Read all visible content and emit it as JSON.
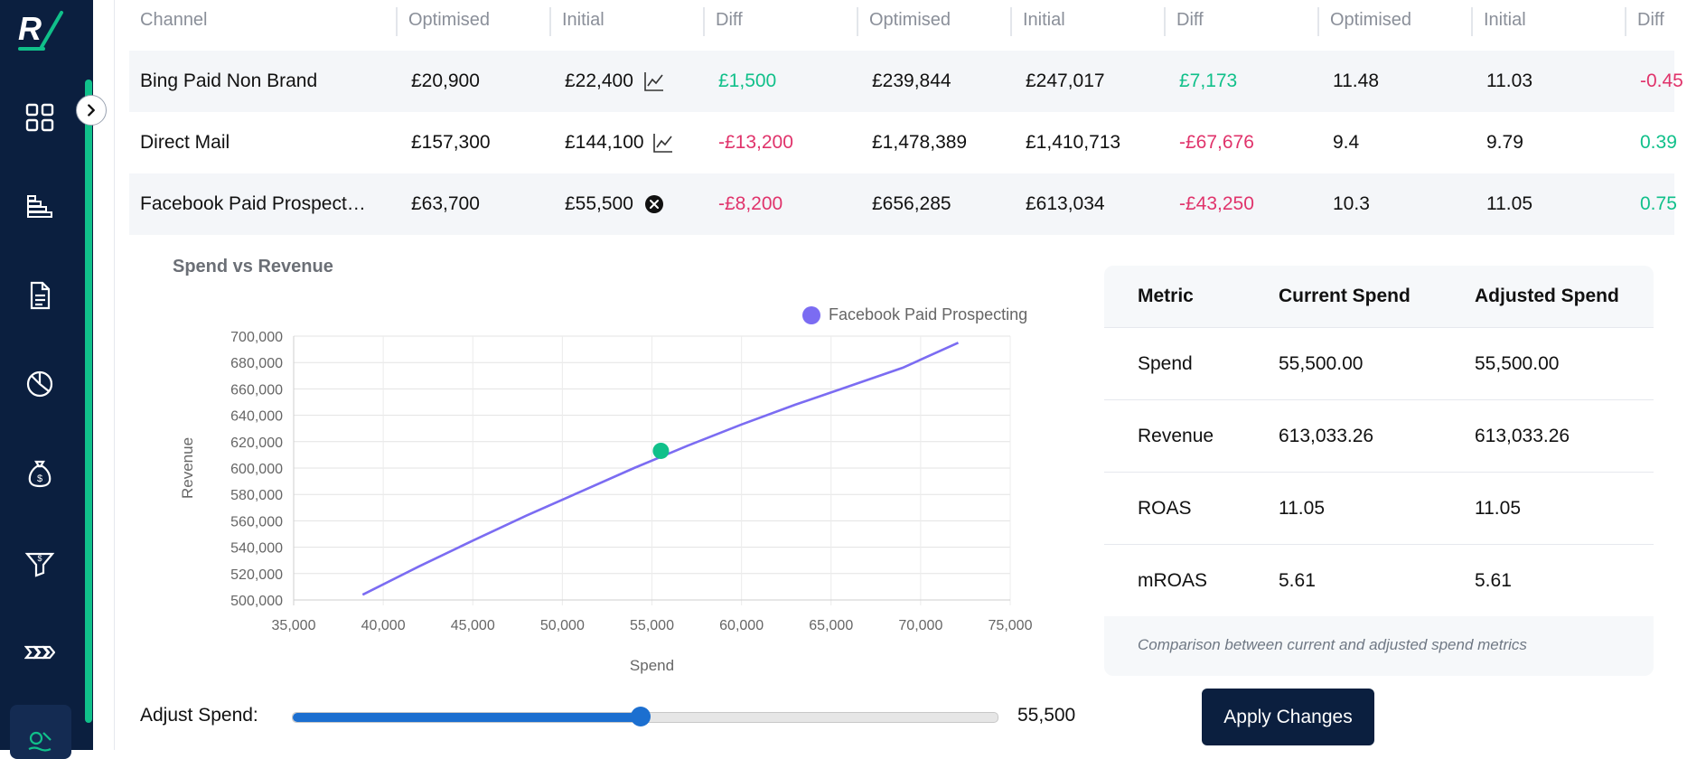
{
  "colors": {
    "sidebar_bg": "#0b1f3f",
    "accent_green": "#10c08a",
    "negative_pink": "#e0336b",
    "series_purple": "#7b6cf2",
    "primary_blue": "#1c6fd0"
  },
  "sidebar": {
    "logo_text": "R/",
    "items": [
      {
        "icon": "dashboard-grid-icon"
      },
      {
        "icon": "stacked-layers-icon"
      },
      {
        "icon": "document-icon"
      },
      {
        "icon": "pie-chart-icon"
      },
      {
        "icon": "money-bag-icon"
      },
      {
        "icon": "funnel-icon"
      },
      {
        "icon": "double-chevron-icon"
      },
      {
        "icon": "optimise-icon"
      }
    ]
  },
  "table": {
    "headers": [
      "Channel",
      "Optimised",
      "Initial",
      "Diff",
      "Optimised",
      "Initial",
      "Diff",
      "Optimised",
      "Initial",
      "Diff"
    ],
    "rows": [
      {
        "channel": "Bing Paid Non Brand",
        "spend_opt": "£20,900",
        "spend_init": "£22,400",
        "init_icon": "line-chart-icon",
        "spend_diff": "£1,500",
        "spend_diff_sign": "pos",
        "rev_opt": "£239,844",
        "rev_init": "£247,017",
        "rev_diff": "£7,173",
        "rev_diff_sign": "pos",
        "roas_opt": "11.48",
        "roas_init": "11.03",
        "roas_diff": "-0.45",
        "roas_diff_sign": "neg"
      },
      {
        "channel": "Direct Mail",
        "spend_opt": "£157,300",
        "spend_init": "£144,100",
        "init_icon": "line-chart-icon",
        "spend_diff": "-£13,200",
        "spend_diff_sign": "neg",
        "rev_opt": "£1,478,389",
        "rev_init": "£1,410,713",
        "rev_diff": "-£67,676",
        "rev_diff_sign": "neg",
        "roas_opt": "9.4",
        "roas_init": "9.79",
        "roas_diff": "0.39",
        "roas_diff_sign": "pos"
      },
      {
        "channel": "Facebook Paid Prospect…",
        "spend_opt": "£63,700",
        "spend_init": "£55,500",
        "init_icon": "close-circle-icon",
        "spend_diff": "-£8,200",
        "spend_diff_sign": "neg",
        "rev_opt": "£656,285",
        "rev_init": "£613,034",
        "rev_diff": "-£43,250",
        "rev_diff_sign": "neg",
        "roas_opt": "10.3",
        "roas_init": "11.05",
        "roas_diff": "0.75",
        "roas_diff_sign": "pos"
      }
    ]
  },
  "chart_data": {
    "type": "line",
    "title": "Spend vs Revenue",
    "xlabel": "Spend",
    "ylabel": "Revenue",
    "xlim": [
      35000,
      75000
    ],
    "ylim": [
      500000,
      700000
    ],
    "xticks": [
      "35,000",
      "40,000",
      "45,000",
      "50,000",
      "55,000",
      "60,000",
      "65,000",
      "70,000",
      "75,000"
    ],
    "yticks": [
      "700,000",
      "680,000",
      "660,000",
      "640,000",
      "620,000",
      "600,000",
      "580,000",
      "560,000",
      "540,000",
      "520,000",
      "500,000"
    ],
    "grid": true,
    "legend_position": "top-right",
    "series": [
      {
        "name": "Facebook Paid Prospecting",
        "color": "#7b6cf2",
        "x": [
          38850,
          42000,
          45000,
          48000,
          51000,
          54000,
          57000,
          60000,
          63000,
          66000,
          69000,
          72100
        ],
        "y": [
          504000,
          525500,
          545000,
          564000,
          582000,
          600000,
          617000,
          633000,
          648000,
          662000,
          676000,
          695000
        ]
      }
    ],
    "highlight_point": {
      "x": 55500,
      "y": 613033,
      "color": "#10c08a"
    }
  },
  "metrics": {
    "headers": [
      "Metric",
      "Current Spend",
      "Adjusted Spend"
    ],
    "rows": [
      {
        "metric": "Spend",
        "current": "55,500.00",
        "adjusted": "55,500.00"
      },
      {
        "metric": "Revenue",
        "current": "613,033.26",
        "adjusted": "613,033.26"
      },
      {
        "metric": "ROAS",
        "current": "11.05",
        "adjusted": "11.05"
      },
      {
        "metric": "mROAS",
        "current": "5.61",
        "adjusted": "5.61"
      }
    ],
    "caption": "Comparison between current and adjusted spend metrics"
  },
  "slider": {
    "label": "Adjust Spend:",
    "value_text": "55,500",
    "value": 55500,
    "min": 35000,
    "max": 76500
  },
  "apply_label": "Apply Changes"
}
